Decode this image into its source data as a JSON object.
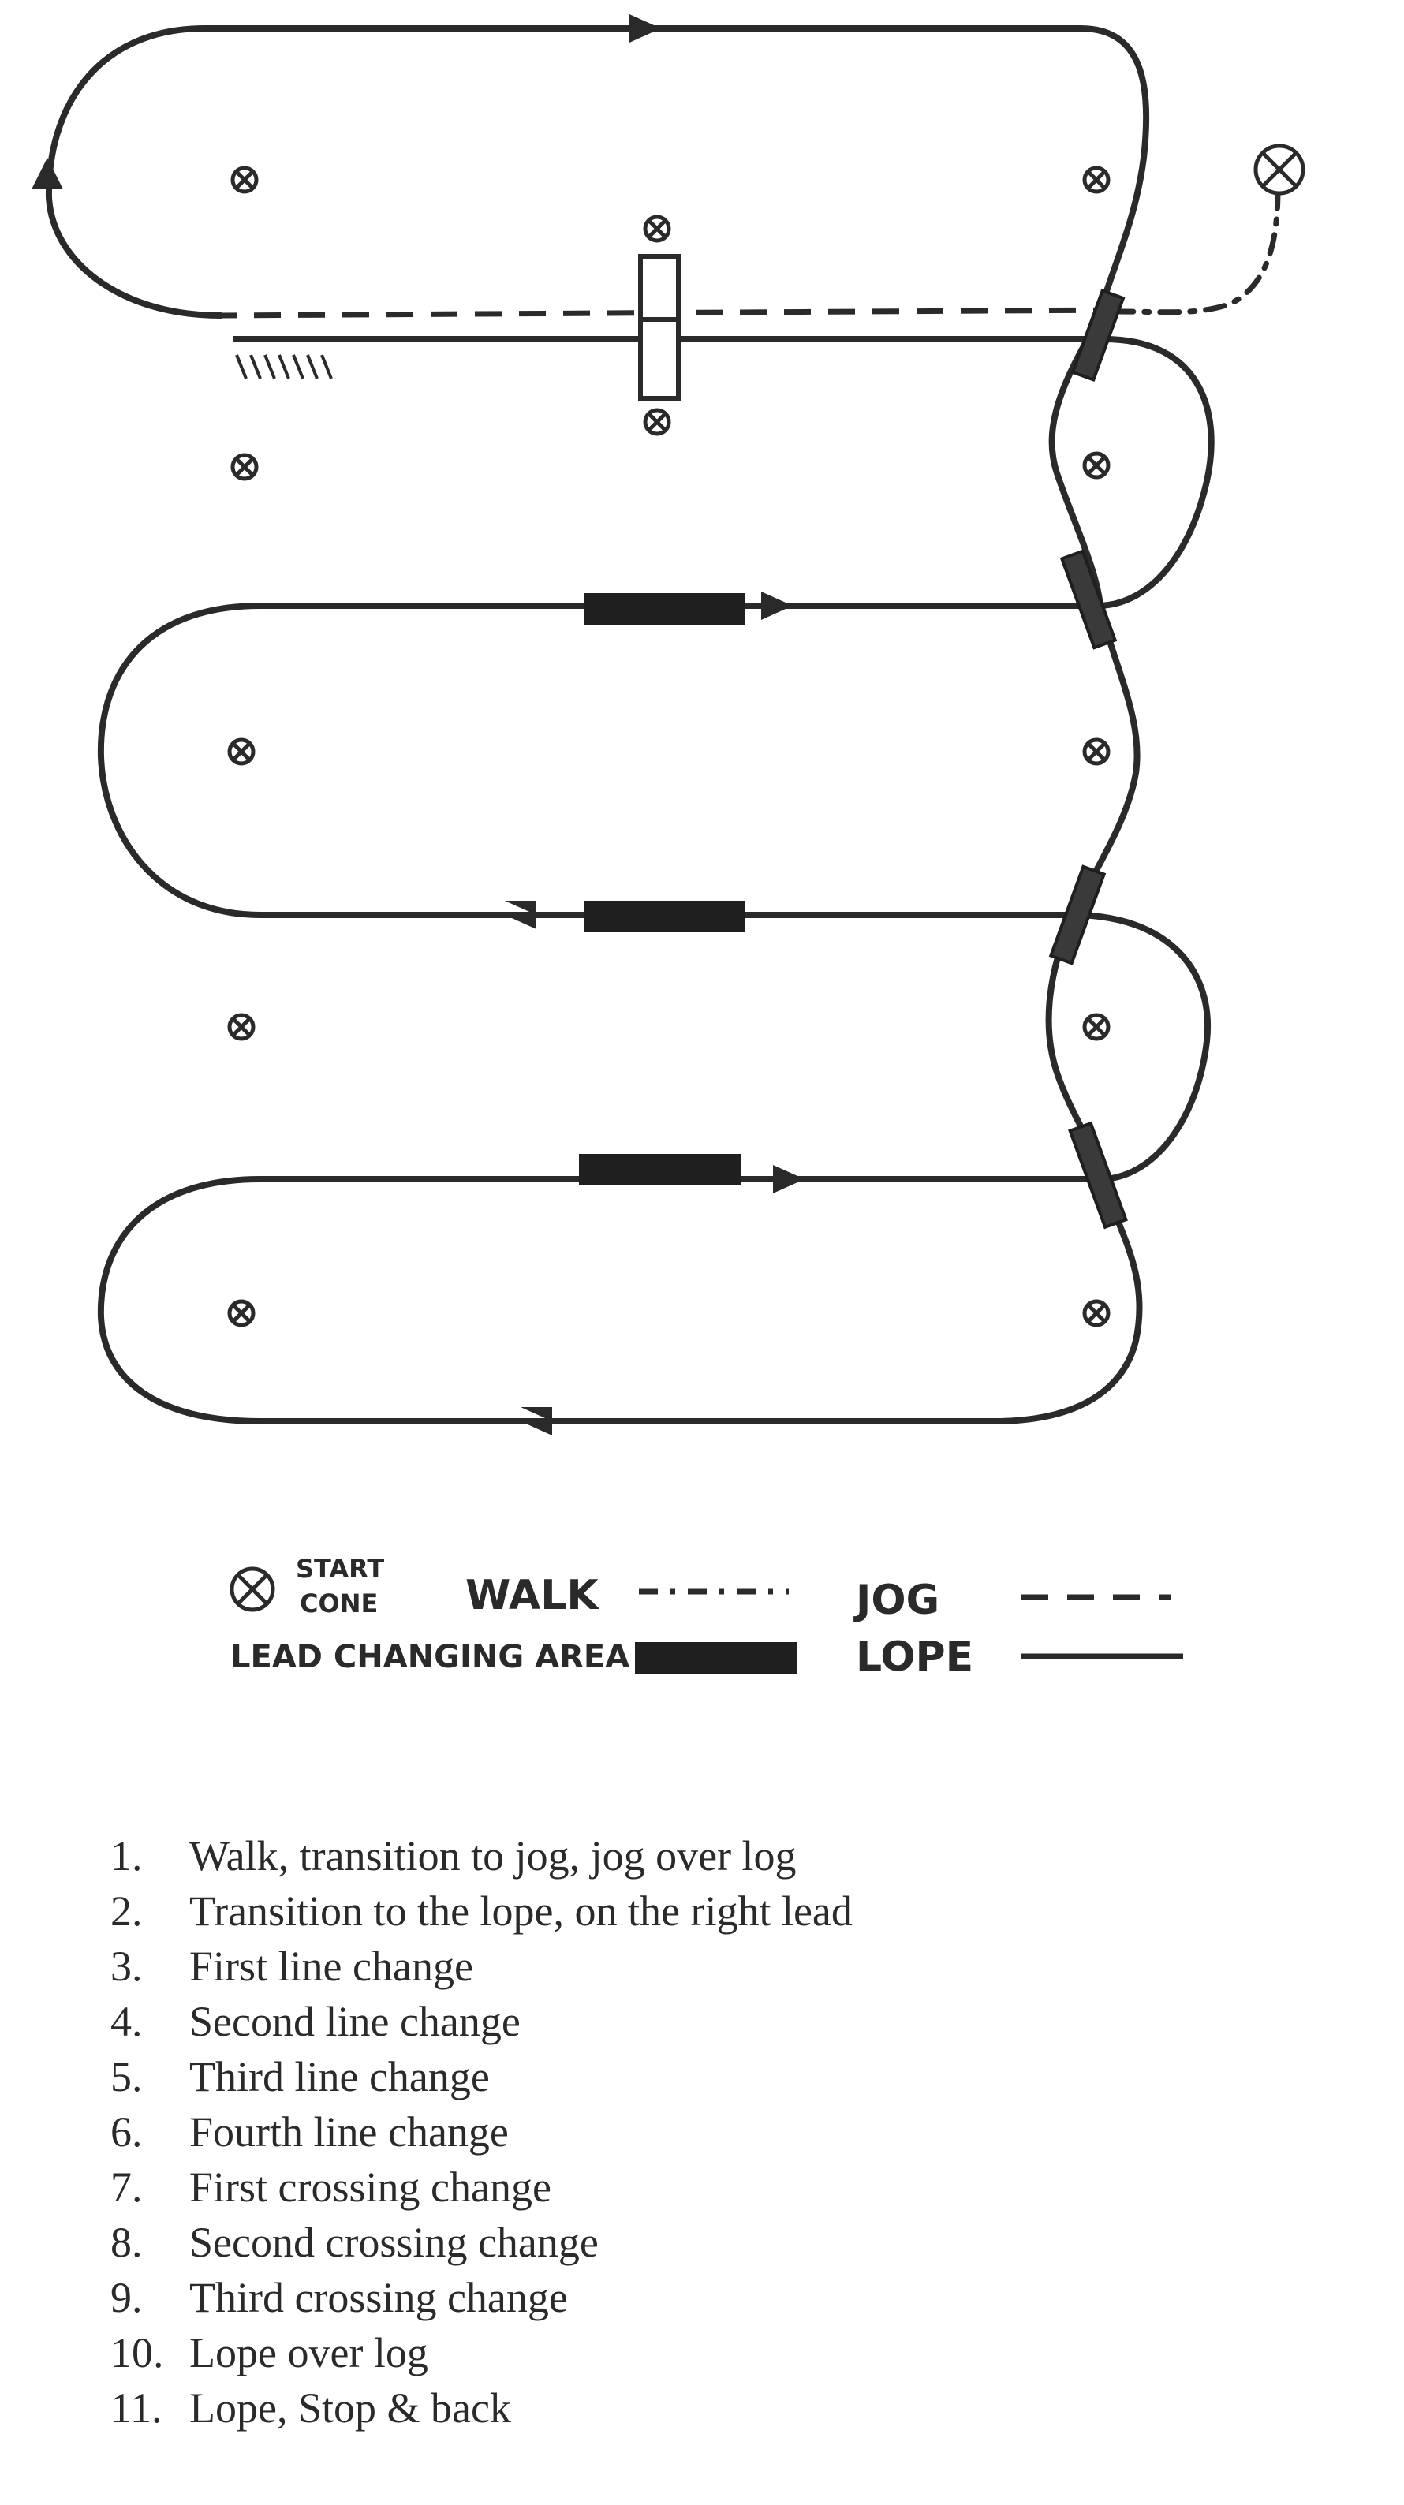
{
  "legend": {
    "start_cone": [
      "START",
      "CONE"
    ],
    "walk": "WALK",
    "jog": "JOG",
    "lead_changing_area": "LEAD CHANGING AREA",
    "lope": "LOPE"
  },
  "steps": [
    {
      "num": "1.",
      "text": "Walk, transition to jog, jog over log"
    },
    {
      "num": "2.",
      "text": "Transition to the lope, on the right lead"
    },
    {
      "num": "3.",
      "text": "First line change"
    },
    {
      "num": "4.",
      "text": "Second line change"
    },
    {
      "num": "5.",
      "text": "Third line change"
    },
    {
      "num": "6.",
      "text": "Fourth line change"
    },
    {
      "num": "7.",
      "text": "First crossing change"
    },
    {
      "num": "8.",
      "text": "Second crossing change"
    },
    {
      "num": "9.",
      "text": "Third crossing change"
    },
    {
      "num": "10.",
      "text": "Lope over log"
    },
    {
      "num": "11.",
      "text": "Lope, Stop & back"
    }
  ],
  "colors": {
    "ink": "#2a2a2a"
  },
  "icons": {
    "cone": "cone-x-icon",
    "arrow": "arrowhead-icon"
  }
}
